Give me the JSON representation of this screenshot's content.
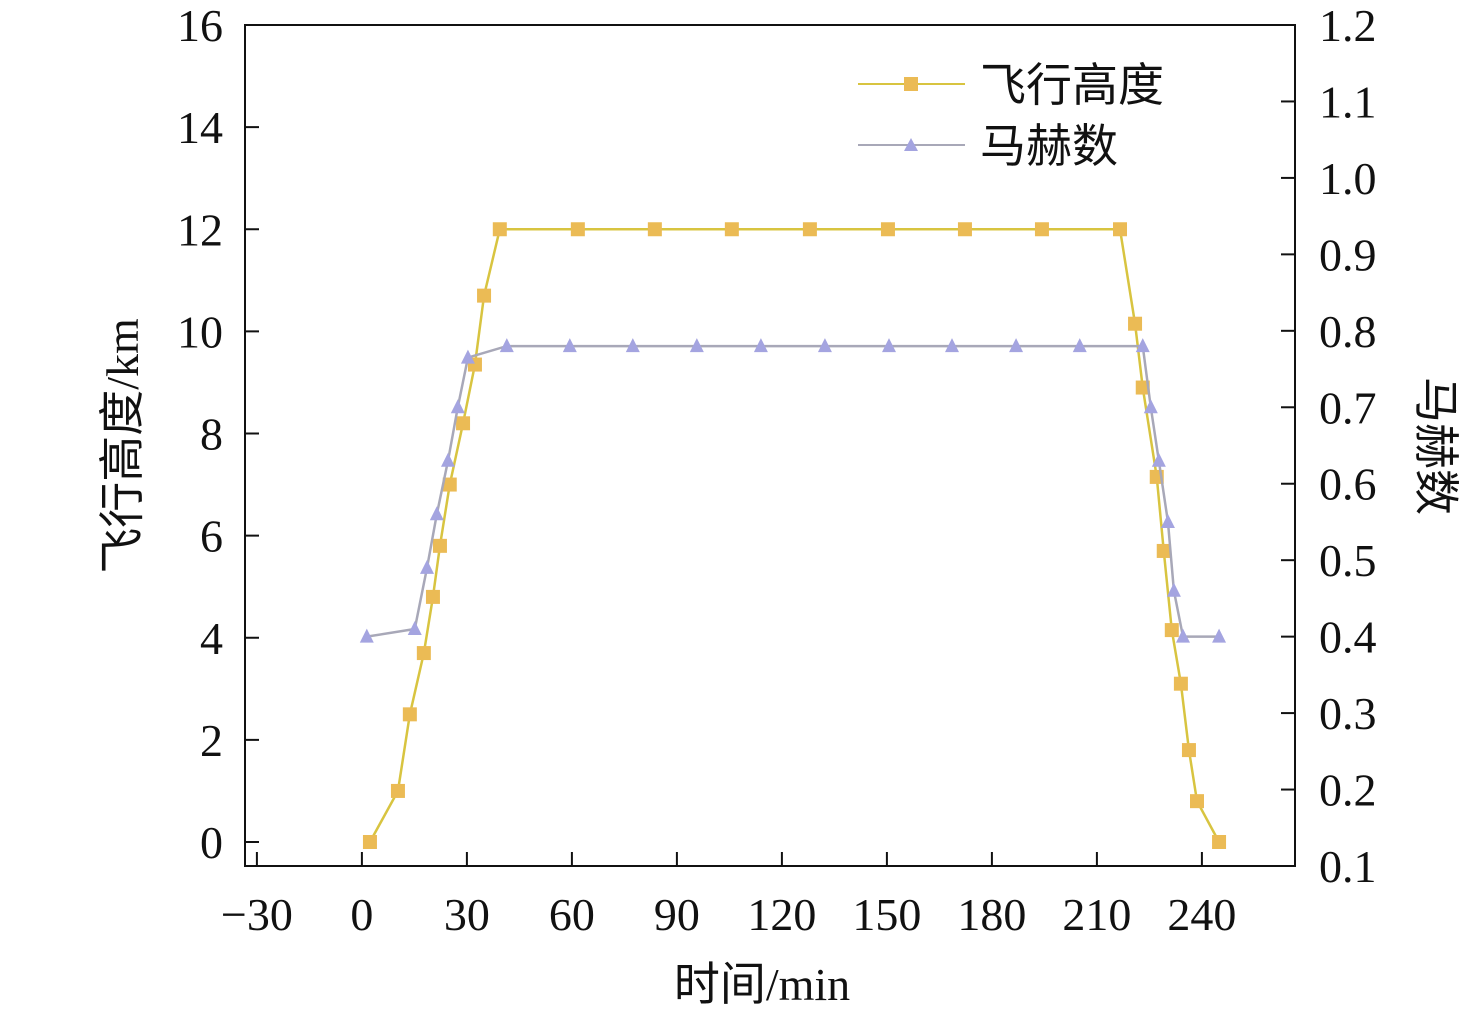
{
  "chart_data": {
    "type": "line",
    "title": "",
    "xlabel": "时间/min",
    "ylabel": "飞行高度/km",
    "y2label": "马赫数",
    "xlim": [
      -33.4,
      266.6
    ],
    "ylim": [
      -0.47,
      16
    ],
    "y2lim": [
      0.1,
      1.2
    ],
    "xticks": [
      -30,
      0,
      30,
      60,
      90,
      120,
      150,
      180,
      210,
      240
    ],
    "xtick_labels": [
      "−30",
      "0",
      "30",
      "60",
      "90",
      "120",
      "150",
      "180",
      "210",
      "240"
    ],
    "yticks": [
      0,
      2,
      4,
      6,
      8,
      10,
      12,
      14,
      16
    ],
    "ytick_labels": [
      "0",
      "2",
      "4",
      "6",
      "8",
      "10",
      "12",
      "14",
      "16"
    ],
    "y2ticks": [
      0.1,
      0.2,
      0.3,
      0.4,
      0.5,
      0.6,
      0.7,
      0.8,
      0.9,
      1.0,
      1.1,
      1.2
    ],
    "y2tick_labels": [
      "0.1",
      "0.2",
      "0.3",
      "0.4",
      "0.5",
      "0.6",
      "0.7",
      "0.8",
      "0.9",
      "1.0",
      "1.1",
      "1.2"
    ],
    "grid": false,
    "legend_position": "top-right",
    "series": [
      {
        "name": "飞行高度",
        "axis": "left",
        "marker": "square",
        "line_color": "#d8c440",
        "marker_color": "#ebbb55",
        "x": [
          2.3,
          10.3,
          13.7,
          17.7,
          20.3,
          22.3,
          25.1,
          28.9,
          32.3,
          34.9,
          39.4,
          61.7,
          83.7,
          105.7,
          128,
          150.3,
          172.3,
          194.3,
          216.6,
          220.9,
          223.1,
          227.1,
          229.1,
          231.4,
          234,
          236.3,
          238.6,
          244.9
        ],
        "y": [
          0,
          1.0,
          2.5,
          3.7,
          4.8,
          5.8,
          7.0,
          8.2,
          9.35,
          10.7,
          12,
          12,
          12,
          12,
          12,
          12,
          12,
          12,
          12,
          10.15,
          8.9,
          7.15,
          5.7,
          4.15,
          3.1,
          1.8,
          0.8,
          0
        ]
      },
      {
        "name": "马赫数",
        "axis": "right",
        "marker": "triangle",
        "line_color": "#a8a8b8",
        "marker_color": "#a4a4e0",
        "x": [
          1.4,
          15.1,
          18.6,
          21.4,
          24.6,
          27.4,
          30.3,
          41.4,
          59.4,
          77.4,
          95.7,
          114,
          132.3,
          150.6,
          168.6,
          186.9,
          205.1,
          223.1,
          225.4,
          227.7,
          230.3,
          232,
          234.6,
          244.9
        ],
        "y": [
          0.4,
          0.41,
          0.49,
          0.56,
          0.63,
          0.7,
          0.765,
          0.78,
          0.78,
          0.78,
          0.78,
          0.78,
          0.78,
          0.78,
          0.78,
          0.78,
          0.78,
          0.78,
          0.7,
          0.63,
          0.55,
          0.46,
          0.4,
          0.4
        ]
      }
    ]
  }
}
